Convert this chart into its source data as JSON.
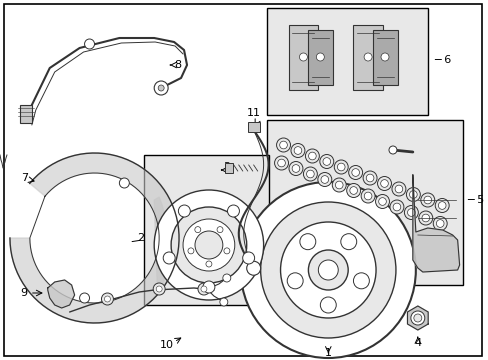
{
  "bg": "#ffffff",
  "figsize": [
    4.89,
    3.6
  ],
  "dpi": 100,
  "line_color": "#333333",
  "light_gray": "#e8e8e8",
  "mid_gray": "#c8c8c8"
}
